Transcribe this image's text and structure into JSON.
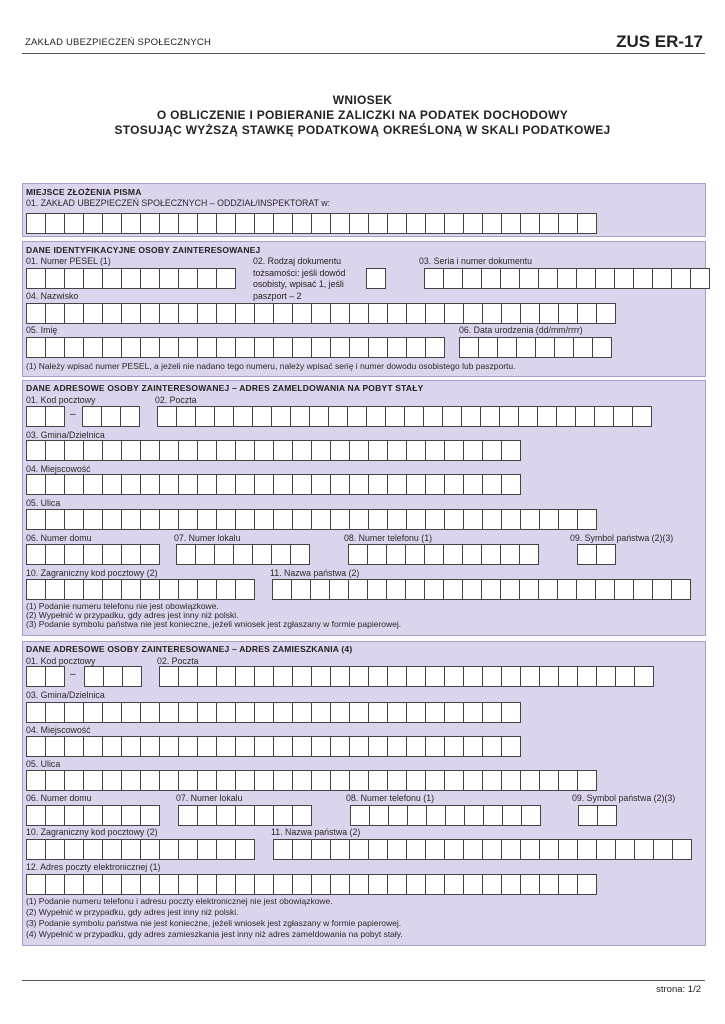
{
  "header": {
    "institution": "ZAKŁAD  UBEZPIECZEŃ  SPOŁECZNYCH",
    "form_code": "ZUS ER-17"
  },
  "title": {
    "line1": "WNIOSEK",
    "line2": "O  OBLICZENIE  I  POBIERANIE  ZALICZKI  NA  PODATEK  DOCHODOWY",
    "line3": "STOSUJĄC  WYŻSZĄ  STAWKĘ  PODATKOWĄ  OKREŚLONĄ  W  SKALI  PODATKOWEJ"
  },
  "section1": {
    "heading": "MIEJSCE  ZŁOŻENIA  PISMA",
    "f01": "01. ZAKŁAD  UBEZPIECZEŃ  SPOŁECZNYCH – ODDZIAŁ/INSPEKTORAT w:"
  },
  "section2": {
    "heading": "DANE  IDENTYFIKACYJNE  OSOBY  ZAINTERESOWANEJ",
    "f01": "01. Numer PESEL (1)",
    "f02": "02. Rodzaj dokumentu tożsamości: jeśli dowód osobisty, wpisać 1, jeśli paszport – 2",
    "f03": "03. Seria i numer dokumentu",
    "f04": "04. Nazwisko",
    "f05": "05. Imię",
    "f06": "06. Data urodzenia (dd/mm/rrrr)",
    "footnote1": "(1) Należy wpisać numer PESEL, a jeżeli nie nadano tego numeru, należy wpisać serię i numer dowodu osobistego lub paszportu."
  },
  "section3": {
    "heading": "DANE  ADRESOWE  OSOBY  ZAINTERESOWANEJ – ADRES  ZAMELDOWANIA  NA  POBYT  STAŁY",
    "f01": "01. Kod pocztowy",
    "f02": "02. Poczta",
    "f03": "03. Gmina/Dzielnica",
    "f04": "04. Miejscowość",
    "f05": "05. Ulica",
    "f06": "06. Numer domu",
    "f07": "07. Numer lokalu",
    "f08": "08. Numer telefonu (1)",
    "f09": "09. Symbol państwa (2)(3)",
    "f10": "10. Zagraniczny kod pocztowy (2)",
    "f11": "11. Nazwa państwa (2)",
    "dash": "–",
    "footnotes": [
      "(1) Podanie numeru telefonu nie jest obowiązkowe.",
      "(2) Wypełnić w przypadku, gdy adres jest inny niż polski.",
      "(3) Podanie symbolu państwa nie jest konieczne, jeżeli wniosek jest zgłaszany w formie papierowej."
    ]
  },
  "section4": {
    "heading": "DANE  ADRESOWE  OSOBY  ZAINTERESOWANEJ – ADRES  ZAMIESZKANIA (4)",
    "f01": "01. Kod pocztowy",
    "f02": "02. Poczta",
    "f03": "03. Gmina/Dzielnica",
    "f04": "04. Miejscowość",
    "f05": "05. Ulica",
    "f06": "06. Numer domu",
    "f07": "07. Numer lokalu",
    "f08": "08. Numer telefonu (1)",
    "f09": "09. Symbol państwa (2)(3)",
    "f10": "10. Zagraniczny kod pocztowy (2)",
    "f11": "11. Nazwa państwa (2)",
    "f12": "12. Adres poczty elektronicznej (1)",
    "dash": "–",
    "footnotes": [
      "(1)  Podanie numeru telefonu i adresu poczty elektronicznej nie jest obowiązkowe.",
      "(2)  Wypełnić w przypadku, gdy adres jest inny niż polski.",
      "(3)  Podanie symbolu państwa nie jest konieczne, jeżeli wniosek jest zgłaszany w formie papierowej.",
      "(4)  Wypełnić w przypadku, gdy adres zamieszkania jest inny niż adres zameldowania na pobyt stały."
    ]
  },
  "footer": {
    "page": "strona: 1/2"
  },
  "colors": {
    "section_bg": "#dcd3ec",
    "section_border": "#a99cc9"
  }
}
